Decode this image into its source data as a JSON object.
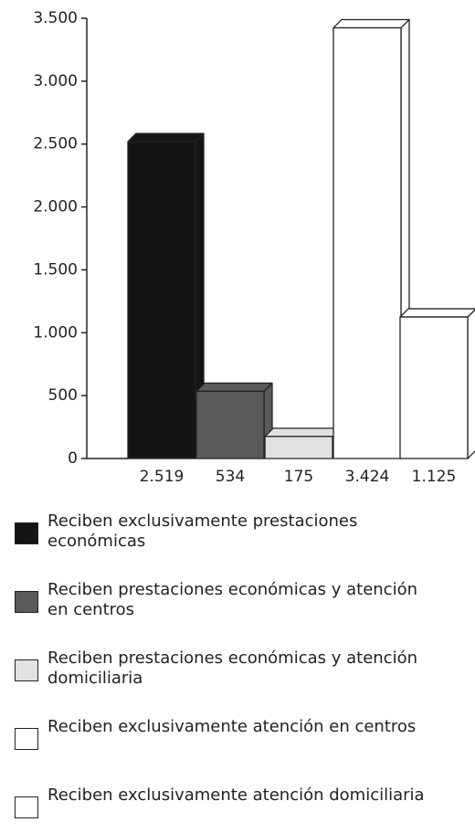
{
  "chart_data": {
    "type": "bar3d",
    "ylim": [
      0,
      3500
    ],
    "yticks": [
      0,
      500,
      {
        "value": 1000,
        "label": "1.000"
      },
      {
        "value": 1500,
        "label": "1.500"
      },
      {
        "value": 2000,
        "label": "2.000"
      },
      {
        "value": 2500,
        "label": "2.500"
      },
      {
        "value": 3000,
        "label": "3.000"
      },
      {
        "value": 3500,
        "label": "3.500"
      }
    ],
    "series": [
      {
        "name": "Reciben exclusivamente prestaciones económicas",
        "color": "#141414",
        "values": [
          2519
        ],
        "value_labels": [
          "2.519"
        ]
      },
      {
        "name": "Reciben prestaciones económicas y atención en centros",
        "color": "#5a5a5a",
        "values": [
          534
        ]
      },
      {
        "name": "Reciben prestaciones económicas y atención domiciliaria",
        "color": "#e2e2e2",
        "values": [
          175
        ]
      },
      {
        "name": "Reciben exclusivamente atención en centros",
        "color": "#ffffff",
        "values": [
          3424
        ],
        "value_labels": [
          "3.424"
        ]
      },
      {
        "name": "Reciben exclusivamente atención domiciliaria",
        "color": "#ffffff",
        "values": [
          1125
        ],
        "value_labels": [
          "1.125"
        ]
      }
    ]
  }
}
